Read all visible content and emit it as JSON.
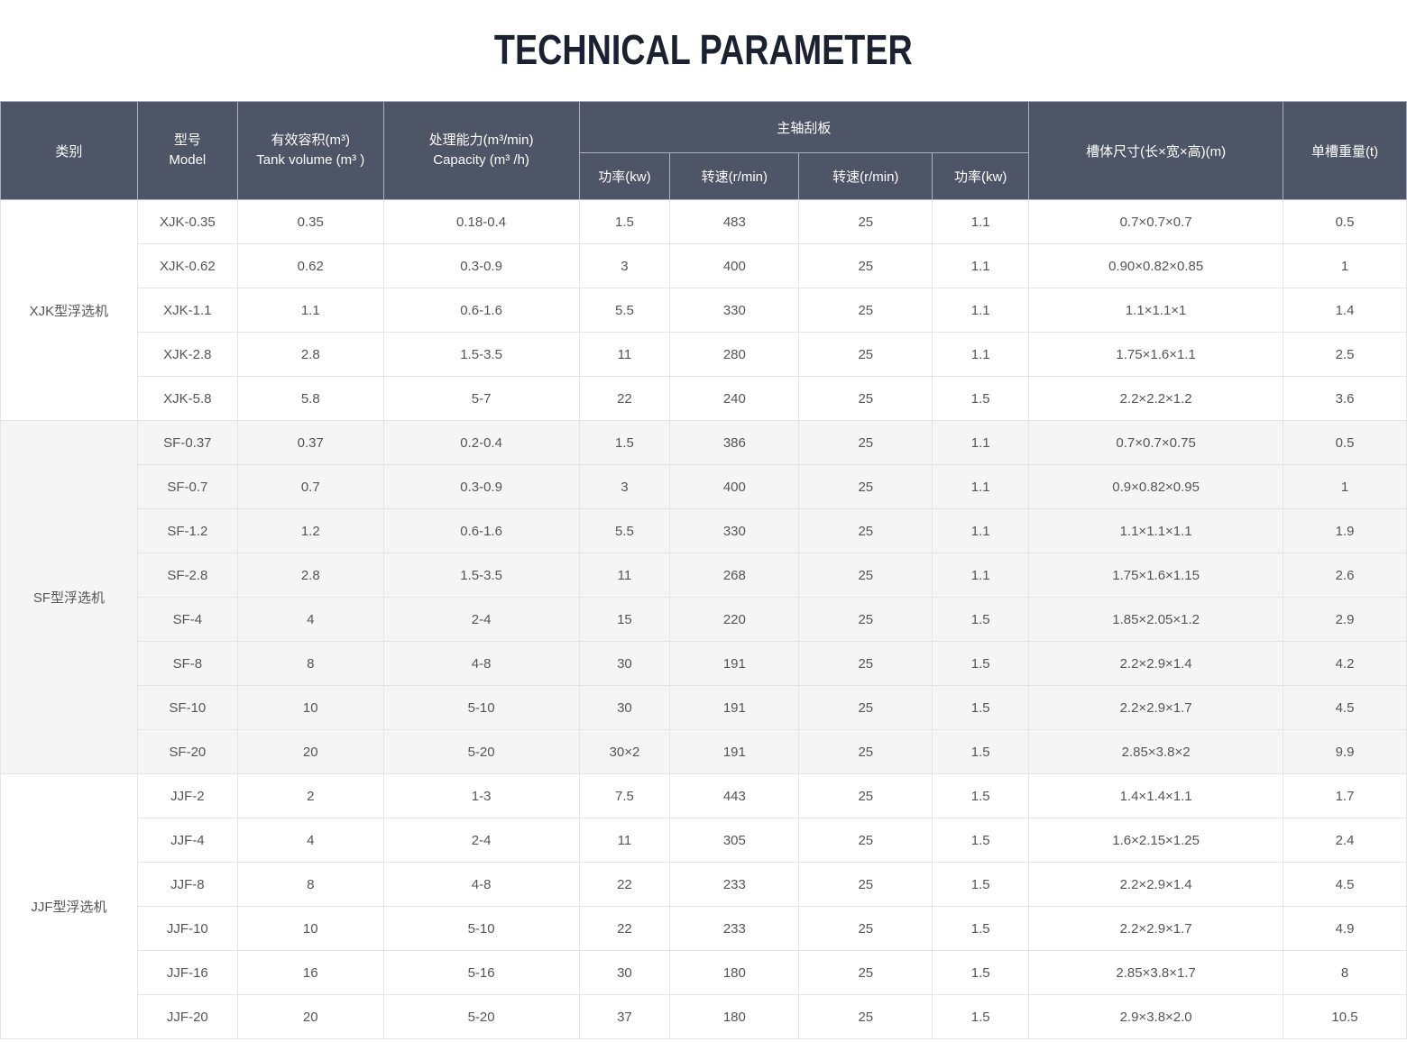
{
  "page": {
    "title": "TECHNICAL PARAMETER"
  },
  "colors": {
    "header_bg": "#4e5567",
    "header_text": "#ffffff",
    "shaded_row_bg": "#f5f5f6",
    "row_bg": "#ffffff",
    "border": "#e4e4e4",
    "body_text": "#555555",
    "title_text": "#1b2130"
  },
  "table": {
    "header": {
      "category": "类别",
      "model_zh": "型号",
      "model_en": "Model",
      "tank_volume_zh": "有效容积(m³)",
      "tank_volume_en": "Tank volume (m³ )",
      "capacity_zh": "处理能力(m³/min)",
      "capacity_en": "Capacity (m³ /h)",
      "spindle_group": "主轴刮板",
      "spindle_sub": [
        "功率(kw)",
        "转速(r/min)",
        "转速(r/min)",
        "功率(kw)"
      ],
      "tank_size": "槽体尺寸(长×宽×高)(m)",
      "weight": "单槽重量(t)"
    },
    "groups": [
      {
        "name": "XJK型浮选机",
        "shaded": false,
        "rows": [
          [
            "XJK-0.35",
            "0.35",
            "0.18-0.4",
            "1.5",
            "483",
            "25",
            "1.1",
            "0.7×0.7×0.7",
            "0.5"
          ],
          [
            "XJK-0.62",
            "0.62",
            "0.3-0.9",
            "3",
            "400",
            "25",
            "1.1",
            "0.90×0.82×0.85",
            "1"
          ],
          [
            "XJK-1.1",
            "1.1",
            "0.6-1.6",
            "5.5",
            "330",
            "25",
            "1.1",
            "1.1×1.1×1",
            "1.4"
          ],
          [
            "XJK-2.8",
            "2.8",
            "1.5-3.5",
            "11",
            "280",
            "25",
            "1.1",
            "1.75×1.6×1.1",
            "2.5"
          ],
          [
            "XJK-5.8",
            "5.8",
            "5-7",
            "22",
            "240",
            "25",
            "1.5",
            "2.2×2.2×1.2",
            "3.6"
          ]
        ]
      },
      {
        "name": "SF型浮选机",
        "shaded": true,
        "rows": [
          [
            "SF-0.37",
            "0.37",
            "0.2-0.4",
            "1.5",
            "386",
            "25",
            "1.1",
            "0.7×0.7×0.75",
            "0.5"
          ],
          [
            "SF-0.7",
            "0.7",
            "0.3-0.9",
            "3",
            "400",
            "25",
            "1.1",
            "0.9×0.82×0.95",
            "1"
          ],
          [
            "SF-1.2",
            "1.2",
            "0.6-1.6",
            "5.5",
            "330",
            "25",
            "1.1",
            "1.1×1.1×1.1",
            "1.9"
          ],
          [
            "SF-2.8",
            "2.8",
            "1.5-3.5",
            "11",
            "268",
            "25",
            "1.1",
            "1.75×1.6×1.15",
            "2.6"
          ],
          [
            "SF-4",
            "4",
            "2-4",
            "15",
            "220",
            "25",
            "1.5",
            "1.85×2.05×1.2",
            "2.9"
          ],
          [
            "SF-8",
            "8",
            "4-8",
            "30",
            "191",
            "25",
            "1.5",
            "2.2×2.9×1.4",
            "4.2"
          ],
          [
            "SF-10",
            "10",
            "5-10",
            "30",
            "191",
            "25",
            "1.5",
            "2.2×2.9×1.7",
            "4.5"
          ],
          [
            "SF-20",
            "20",
            "5-20",
            "30×2",
            "191",
            "25",
            "1.5",
            "2.85×3.8×2",
            "9.9"
          ]
        ]
      },
      {
        "name": "JJF型浮选机",
        "shaded": false,
        "rows": [
          [
            "JJF-2",
            "2",
            "1-3",
            "7.5",
            "443",
            "25",
            "1.5",
            "1.4×1.4×1.1",
            "1.7"
          ],
          [
            "JJF-4",
            "4",
            "2-4",
            "11",
            "305",
            "25",
            "1.5",
            "1.6×2.15×1.25",
            "2.4"
          ],
          [
            "JJF-8",
            "8",
            "4-8",
            "22",
            "233",
            "25",
            "1.5",
            "2.2×2.9×1.4",
            "4.5"
          ],
          [
            "JJF-10",
            "10",
            "5-10",
            "22",
            "233",
            "25",
            "1.5",
            "2.2×2.9×1.7",
            "4.9"
          ],
          [
            "JJF-16",
            "16",
            "5-16",
            "30",
            "180",
            "25",
            "1.5",
            "2.85×3.8×1.7",
            "8"
          ],
          [
            "JJF-20",
            "20",
            "5-20",
            "37",
            "180",
            "25",
            "1.5",
            "2.9×3.8×2.0",
            "10.5"
          ]
        ]
      }
    ]
  }
}
